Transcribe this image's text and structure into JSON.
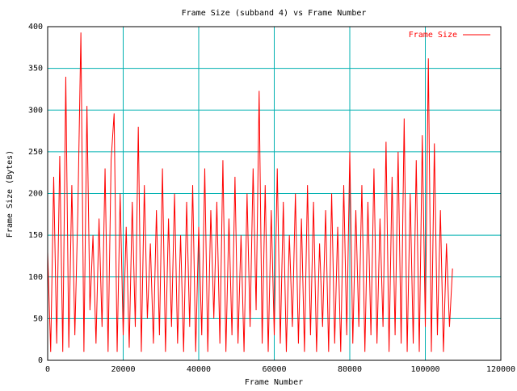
{
  "chart_data": {
    "type": "line",
    "title": "Frame Size (subband 4) vs Frame Number",
    "x_label": "Frame Number",
    "y_label": "Frame Size (Bytes)",
    "xlim": [
      0,
      120000
    ],
    "ylim": [
      0,
      400
    ],
    "xticks": [
      0,
      20000,
      40000,
      60000,
      80000,
      100000,
      120000
    ],
    "yticks": [
      0,
      50,
      100,
      150,
      200,
      250,
      300,
      350,
      400
    ],
    "grid": true,
    "legend": "top-right",
    "x": [
      0,
      800,
      1600,
      2400,
      3200,
      4000,
      4800,
      5600,
      6400,
      7200,
      8000,
      8800,
      9600,
      10400,
      11200,
      12000,
      12800,
      13600,
      14400,
      15200,
      16000,
      16800,
      17600,
      18400,
      19200,
      20000,
      20800,
      21600,
      22400,
      23200,
      24000,
      24800,
      25600,
      26400,
      27200,
      28000,
      28800,
      29600,
      30400,
      31200,
      32000,
      32800,
      33600,
      34400,
      35200,
      36000,
      36800,
      37600,
      38400,
      39200,
      40000,
      40800,
      41600,
      42400,
      43200,
      44000,
      44800,
      45600,
      46400,
      47200,
      48000,
      48800,
      49600,
      50400,
      51200,
      52000,
      52800,
      53600,
      54400,
      55200,
      56000,
      56800,
      57600,
      58400,
      59200,
      60000,
      60800,
      61600,
      62400,
      63200,
      64000,
      64800,
      65600,
      66400,
      67200,
      68000,
      68800,
      69600,
      70400,
      71200,
      72000,
      72800,
      73600,
      74400,
      75200,
      76000,
      76800,
      77600,
      78400,
      79200,
      80000,
      80800,
      81600,
      82400,
      83200,
      84000,
      84800,
      85600,
      86400,
      87200,
      88000,
      88800,
      89600,
      90400,
      91200,
      92000,
      92800,
      93600,
      94400,
      95200,
      96000,
      96800,
      97600,
      98400,
      99200,
      100000,
      100800,
      101600,
      102400,
      103200,
      104000,
      104800,
      105600,
      106400,
      107200
    ],
    "series": [
      {
        "name": "Frame Size",
        "color": "#ff0000",
        "values": [
          130,
          10,
          220,
          20,
          245,
          10,
          340,
          15,
          210,
          30,
          180,
          393,
          10,
          305,
          60,
          150,
          20,
          170,
          40,
          230,
          10,
          240,
          296,
          10,
          200,
          30,
          160,
          15,
          190,
          40,
          280,
          10,
          210,
          50,
          140,
          20,
          180,
          30,
          230,
          10,
          170,
          40,
          200,
          20,
          150,
          10,
          190,
          40,
          210,
          10,
          160,
          30,
          230,
          10,
          180,
          50,
          190,
          20,
          240,
          10,
          170,
          30,
          220,
          20,
          150,
          10,
          200,
          40,
          230,
          60,
          323,
          20,
          210,
          10,
          180,
          30,
          230,
          20,
          190,
          10,
          150,
          40,
          200,
          20,
          170,
          10,
          210,
          30,
          190,
          10,
          140,
          40,
          180,
          10,
          200,
          20,
          160,
          10,
          210,
          30,
          250,
          20,
          180,
          40,
          210,
          10,
          190,
          30,
          230,
          20,
          170,
          40,
          262,
          10,
          220,
          30,
          250,
          20,
          290,
          10,
          200,
          20,
          240,
          10,
          270,
          40,
          362,
          10,
          260,
          30,
          180,
          10,
          140,
          40,
          110
        ]
      }
    ]
  }
}
